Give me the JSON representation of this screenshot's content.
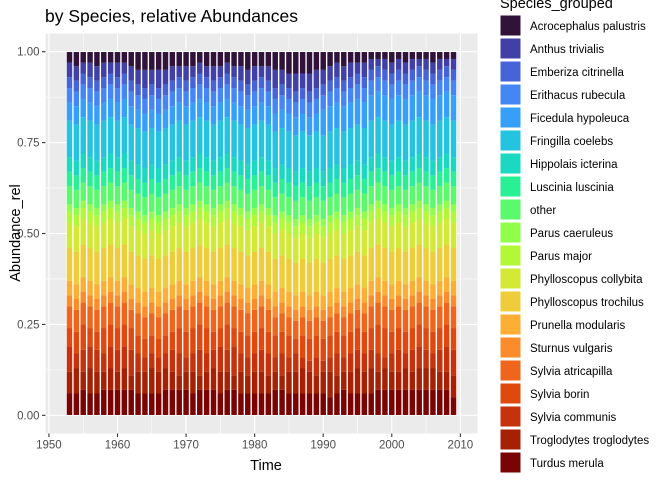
{
  "chart_data": {
    "type": "bar",
    "title": "by Species, relative Abundances",
    "xlabel": "Time",
    "ylabel": "Abundance_rel",
    "xlim": [
      1949.5,
      2012.5
    ],
    "ylim": [
      -0.05,
      1.05
    ],
    "x_ticks": [
      1950,
      1960,
      1970,
      1980,
      1990,
      2000,
      2010
    ],
    "y_ticks": [
      0.0,
      0.25,
      0.5,
      0.75,
      1.0
    ],
    "y_tick_labels": [
      "0.00",
      "0.25",
      "0.50",
      "0.75",
      "1.00"
    ],
    "stacked": true,
    "grid": true,
    "legend_position": "right",
    "legend_title": "Species_grouped",
    "background": "#EBEBEB",
    "gridline_color": "#FFFFFF",
    "bar_outline_color": "#FFFFFF",
    "years": [
      1953,
      1954,
      1955,
      1956,
      1957,
      1958,
      1959,
      1960,
      1961,
      1962,
      1963,
      1964,
      1965,
      1966,
      1967,
      1968,
      1969,
      1970,
      1971,
      1972,
      1973,
      1974,
      1975,
      1976,
      1977,
      1978,
      1979,
      1980,
      1981,
      1982,
      1983,
      1984,
      1985,
      1986,
      1987,
      1988,
      1989,
      1990,
      1991,
      1992,
      1993,
      1994,
      1995,
      1996,
      1997,
      1998,
      1999,
      2000,
      2001,
      2002,
      2003,
      2004,
      2005,
      2006,
      2007,
      2008,
      2009
    ],
    "species": [
      "Acrocephalus palustris",
      "Anthus trivialis",
      "Emberiza citrinella",
      "Erithacus rubecula",
      "Ficedula hypoleuca",
      "Fringilla coelebs",
      "Hippolais icterina",
      "Luscinia luscinia",
      "other",
      "Parus caeruleus",
      "Parus major",
      "Phylloscopus collybita",
      "Phylloscopus trochilus",
      "Prunella modularis",
      "Sturnus vulgaris",
      "Sylvia atricapilla",
      "Sylvia borin",
      "Sylvia communis",
      "Troglodytes troglodytes",
      "Turdus merula"
    ],
    "colors": [
      "#30123B",
      "#4040A6",
      "#4664D8",
      "#4586F5",
      "#369FF8",
      "#24C3E0",
      "#1AD9C0",
      "#29EF95",
      "#5AFA6C",
      "#8FFF49",
      "#B3F836",
      "#D2E936",
      "#EFCC3A",
      "#FDAE35",
      "#FA8C2B",
      "#F0651C",
      "#DF490F",
      "#C6320B",
      "#A62104",
      "#7A0403"
    ],
    "cumulative_tops": {
      "Turdus merula": [
        0.06,
        0.06,
        0.07,
        0.06,
        0.06,
        0.07,
        0.07,
        0.07,
        0.07,
        0.07,
        0.06,
        0.06,
        0.06,
        0.06,
        0.07,
        0.07,
        0.07,
        0.07,
        0.06,
        0.07,
        0.07,
        0.07,
        0.06,
        0.07,
        0.07,
        0.06,
        0.06,
        0.06,
        0.06,
        0.06,
        0.07,
        0.07,
        0.06,
        0.06,
        0.06,
        0.06,
        0.06,
        0.06,
        0.05,
        0.06,
        0.07,
        0.06,
        0.06,
        0.06,
        0.06,
        0.07,
        0.07,
        0.07,
        0.07,
        0.07,
        0.07,
        0.07,
        0.07,
        0.07,
        0.07,
        0.07,
        0.05
      ],
      "Troglodytes troglodytes": [
        0.12,
        0.13,
        0.12,
        0.13,
        0.12,
        0.12,
        0.13,
        0.12,
        0.13,
        0.11,
        0.12,
        0.12,
        0.13,
        0.12,
        0.13,
        0.12,
        0.11,
        0.12,
        0.12,
        0.11,
        0.12,
        0.13,
        0.12,
        0.12,
        0.11,
        0.12,
        0.11,
        0.12,
        0.12,
        0.11,
        0.12,
        0.11,
        0.12,
        0.12,
        0.13,
        0.12,
        0.11,
        0.12,
        0.12,
        0.11,
        0.12,
        0.12,
        0.13,
        0.12,
        0.13,
        0.12,
        0.13,
        0.12,
        0.12,
        0.13,
        0.12,
        0.13,
        0.13,
        0.13,
        0.12,
        0.12,
        0.11
      ],
      "Sylvia communis": [
        0.19,
        0.17,
        0.18,
        0.19,
        0.18,
        0.17,
        0.19,
        0.18,
        0.19,
        0.18,
        0.17,
        0.16,
        0.17,
        0.16,
        0.17,
        0.18,
        0.17,
        0.16,
        0.17,
        0.18,
        0.17,
        0.18,
        0.19,
        0.18,
        0.19,
        0.17,
        0.16,
        0.17,
        0.18,
        0.17,
        0.16,
        0.17,
        0.16,
        0.17,
        0.16,
        0.15,
        0.16,
        0.15,
        0.16,
        0.17,
        0.16,
        0.17,
        0.18,
        0.17,
        0.18,
        0.17,
        0.16,
        0.17,
        0.18,
        0.17,
        0.18,
        0.19,
        0.18,
        0.17,
        0.18,
        0.19,
        0.18
      ],
      "Sylvia borin": [
        0.24,
        0.23,
        0.25,
        0.24,
        0.23,
        0.24,
        0.25,
        0.24,
        0.25,
        0.24,
        0.22,
        0.21,
        0.22,
        0.21,
        0.22,
        0.23,
        0.24,
        0.23,
        0.24,
        0.25,
        0.24,
        0.23,
        0.24,
        0.25,
        0.24,
        0.23,
        0.22,
        0.23,
        0.24,
        0.23,
        0.22,
        0.23,
        0.22,
        0.21,
        0.22,
        0.21,
        0.22,
        0.21,
        0.22,
        0.23,
        0.22,
        0.23,
        0.24,
        0.23,
        0.24,
        0.25,
        0.24,
        0.23,
        0.24,
        0.23,
        0.24,
        0.25,
        0.24,
        0.23,
        0.24,
        0.25,
        0.24
      ],
      "Sylvia atricapilla": [
        0.3,
        0.29,
        0.31,
        0.3,
        0.29,
        0.3,
        0.31,
        0.3,
        0.31,
        0.29,
        0.28,
        0.27,
        0.28,
        0.27,
        0.28,
        0.29,
        0.3,
        0.29,
        0.3,
        0.31,
        0.3,
        0.29,
        0.3,
        0.31,
        0.3,
        0.29,
        0.28,
        0.29,
        0.3,
        0.29,
        0.27,
        0.28,
        0.27,
        0.26,
        0.27,
        0.26,
        0.27,
        0.26,
        0.27,
        0.28,
        0.27,
        0.28,
        0.29,
        0.28,
        0.3,
        0.31,
        0.3,
        0.29,
        0.3,
        0.29,
        0.3,
        0.31,
        0.3,
        0.29,
        0.3,
        0.31,
        0.3
      ],
      "Sturnus vulgaris": [
        0.33,
        0.32,
        0.34,
        0.33,
        0.32,
        0.33,
        0.34,
        0.33,
        0.34,
        0.32,
        0.31,
        0.3,
        0.31,
        0.3,
        0.31,
        0.32,
        0.33,
        0.32,
        0.33,
        0.34,
        0.33,
        0.32,
        0.33,
        0.34,
        0.33,
        0.32,
        0.31,
        0.32,
        0.33,
        0.32,
        0.3,
        0.31,
        0.3,
        0.29,
        0.3,
        0.29,
        0.3,
        0.29,
        0.3,
        0.31,
        0.3,
        0.31,
        0.32,
        0.31,
        0.33,
        0.34,
        0.33,
        0.32,
        0.33,
        0.32,
        0.33,
        0.34,
        0.33,
        0.32,
        0.33,
        0.34,
        0.33
      ],
      "Prunella modularis": [
        0.37,
        0.36,
        0.38,
        0.37,
        0.36,
        0.37,
        0.38,
        0.37,
        0.38,
        0.36,
        0.35,
        0.34,
        0.35,
        0.34,
        0.35,
        0.36,
        0.37,
        0.36,
        0.37,
        0.38,
        0.37,
        0.36,
        0.37,
        0.38,
        0.37,
        0.36,
        0.35,
        0.36,
        0.37,
        0.36,
        0.34,
        0.35,
        0.34,
        0.33,
        0.34,
        0.33,
        0.34,
        0.33,
        0.34,
        0.35,
        0.34,
        0.35,
        0.36,
        0.35,
        0.37,
        0.38,
        0.37,
        0.36,
        0.37,
        0.36,
        0.37,
        0.38,
        0.37,
        0.36,
        0.37,
        0.38,
        0.37
      ],
      "Phylloscopus trochilus": [
        0.46,
        0.45,
        0.47,
        0.46,
        0.45,
        0.46,
        0.47,
        0.46,
        0.47,
        0.45,
        0.44,
        0.43,
        0.44,
        0.43,
        0.44,
        0.45,
        0.46,
        0.45,
        0.46,
        0.47,
        0.46,
        0.45,
        0.46,
        0.47,
        0.46,
        0.45,
        0.44,
        0.45,
        0.46,
        0.45,
        0.43,
        0.44,
        0.43,
        0.42,
        0.43,
        0.42,
        0.43,
        0.42,
        0.43,
        0.44,
        0.43,
        0.44,
        0.45,
        0.44,
        0.46,
        0.47,
        0.46,
        0.45,
        0.46,
        0.45,
        0.46,
        0.47,
        0.46,
        0.45,
        0.46,
        0.47,
        0.46
      ],
      "Phylloscopus collybita": [
        0.53,
        0.52,
        0.54,
        0.53,
        0.52,
        0.53,
        0.54,
        0.53,
        0.54,
        0.52,
        0.51,
        0.5,
        0.51,
        0.5,
        0.51,
        0.52,
        0.53,
        0.52,
        0.53,
        0.54,
        0.53,
        0.52,
        0.53,
        0.54,
        0.53,
        0.52,
        0.51,
        0.52,
        0.53,
        0.52,
        0.5,
        0.51,
        0.5,
        0.49,
        0.5,
        0.49,
        0.5,
        0.49,
        0.5,
        0.51,
        0.5,
        0.51,
        0.52,
        0.51,
        0.53,
        0.54,
        0.53,
        0.52,
        0.53,
        0.52,
        0.53,
        0.54,
        0.53,
        0.52,
        0.53,
        0.54,
        0.53
      ],
      "Parus major": [
        0.56,
        0.55,
        0.57,
        0.56,
        0.55,
        0.56,
        0.57,
        0.56,
        0.57,
        0.55,
        0.54,
        0.53,
        0.54,
        0.53,
        0.54,
        0.55,
        0.56,
        0.55,
        0.56,
        0.57,
        0.56,
        0.55,
        0.56,
        0.57,
        0.56,
        0.55,
        0.54,
        0.55,
        0.56,
        0.55,
        0.53,
        0.54,
        0.53,
        0.52,
        0.53,
        0.52,
        0.53,
        0.52,
        0.53,
        0.54,
        0.53,
        0.54,
        0.55,
        0.54,
        0.56,
        0.57,
        0.56,
        0.55,
        0.56,
        0.55,
        0.56,
        0.57,
        0.56,
        0.55,
        0.56,
        0.57,
        0.56
      ],
      "Parus caeruleus": [
        0.58,
        0.57,
        0.59,
        0.58,
        0.57,
        0.58,
        0.59,
        0.58,
        0.59,
        0.57,
        0.56,
        0.55,
        0.56,
        0.55,
        0.56,
        0.57,
        0.58,
        0.57,
        0.58,
        0.59,
        0.58,
        0.57,
        0.58,
        0.59,
        0.58,
        0.57,
        0.56,
        0.57,
        0.58,
        0.57,
        0.55,
        0.56,
        0.55,
        0.54,
        0.55,
        0.54,
        0.55,
        0.54,
        0.55,
        0.56,
        0.55,
        0.56,
        0.57,
        0.56,
        0.58,
        0.59,
        0.58,
        0.57,
        0.58,
        0.57,
        0.58,
        0.59,
        0.58,
        0.57,
        0.58,
        0.59,
        0.58
      ],
      "other": [
        0.63,
        0.62,
        0.64,
        0.63,
        0.62,
        0.63,
        0.64,
        0.63,
        0.64,
        0.62,
        0.61,
        0.6,
        0.61,
        0.6,
        0.61,
        0.62,
        0.63,
        0.62,
        0.63,
        0.64,
        0.63,
        0.62,
        0.63,
        0.64,
        0.63,
        0.62,
        0.61,
        0.62,
        0.63,
        0.62,
        0.6,
        0.61,
        0.6,
        0.59,
        0.6,
        0.59,
        0.6,
        0.59,
        0.6,
        0.61,
        0.6,
        0.61,
        0.62,
        0.61,
        0.63,
        0.64,
        0.63,
        0.62,
        0.63,
        0.62,
        0.63,
        0.64,
        0.63,
        0.62,
        0.63,
        0.64,
        0.63
      ],
      "Luscinia luscinia": [
        0.67,
        0.66,
        0.68,
        0.67,
        0.66,
        0.67,
        0.68,
        0.67,
        0.68,
        0.66,
        0.65,
        0.64,
        0.65,
        0.64,
        0.65,
        0.66,
        0.67,
        0.66,
        0.67,
        0.68,
        0.67,
        0.66,
        0.67,
        0.68,
        0.67,
        0.66,
        0.65,
        0.66,
        0.67,
        0.66,
        0.64,
        0.65,
        0.64,
        0.63,
        0.64,
        0.63,
        0.64,
        0.63,
        0.64,
        0.65,
        0.64,
        0.65,
        0.66,
        0.65,
        0.67,
        0.68,
        0.67,
        0.66,
        0.67,
        0.66,
        0.67,
        0.68,
        0.67,
        0.66,
        0.67,
        0.68,
        0.67
      ],
      "Hippolais icterina": [
        0.71,
        0.7,
        0.72,
        0.71,
        0.7,
        0.71,
        0.72,
        0.71,
        0.72,
        0.7,
        0.69,
        0.68,
        0.69,
        0.68,
        0.69,
        0.7,
        0.71,
        0.7,
        0.71,
        0.72,
        0.71,
        0.7,
        0.71,
        0.72,
        0.71,
        0.7,
        0.69,
        0.7,
        0.71,
        0.7,
        0.68,
        0.69,
        0.68,
        0.67,
        0.68,
        0.67,
        0.68,
        0.67,
        0.68,
        0.69,
        0.68,
        0.69,
        0.7,
        0.69,
        0.71,
        0.72,
        0.71,
        0.7,
        0.71,
        0.7,
        0.71,
        0.72,
        0.71,
        0.7,
        0.71,
        0.72,
        0.71
      ],
      "Fringilla coelebs": [
        0.81,
        0.8,
        0.82,
        0.81,
        0.8,
        0.81,
        0.82,
        0.81,
        0.82,
        0.8,
        0.79,
        0.78,
        0.79,
        0.78,
        0.79,
        0.8,
        0.81,
        0.8,
        0.81,
        0.82,
        0.81,
        0.8,
        0.81,
        0.82,
        0.81,
        0.8,
        0.79,
        0.8,
        0.81,
        0.8,
        0.78,
        0.79,
        0.78,
        0.77,
        0.78,
        0.77,
        0.78,
        0.77,
        0.78,
        0.79,
        0.78,
        0.79,
        0.8,
        0.79,
        0.81,
        0.82,
        0.81,
        0.8,
        0.81,
        0.8,
        0.81,
        0.82,
        0.81,
        0.8,
        0.81,
        0.82,
        0.81
      ],
      "Ficedula hypoleuca": [
        0.86,
        0.85,
        0.87,
        0.86,
        0.85,
        0.86,
        0.87,
        0.86,
        0.87,
        0.85,
        0.84,
        0.83,
        0.84,
        0.83,
        0.84,
        0.85,
        0.86,
        0.85,
        0.86,
        0.87,
        0.86,
        0.85,
        0.86,
        0.87,
        0.86,
        0.85,
        0.84,
        0.85,
        0.86,
        0.85,
        0.83,
        0.84,
        0.83,
        0.82,
        0.83,
        0.82,
        0.83,
        0.84,
        0.85,
        0.86,
        0.85,
        0.86,
        0.87,
        0.86,
        0.88,
        0.89,
        0.88,
        0.87,
        0.88,
        0.87,
        0.88,
        0.89,
        0.88,
        0.87,
        0.88,
        0.89,
        0.88
      ],
      "Erithacus rubecula": [
        0.9,
        0.89,
        0.91,
        0.9,
        0.89,
        0.9,
        0.91,
        0.9,
        0.91,
        0.89,
        0.88,
        0.87,
        0.88,
        0.87,
        0.88,
        0.89,
        0.9,
        0.89,
        0.9,
        0.91,
        0.9,
        0.89,
        0.9,
        0.91,
        0.9,
        0.89,
        0.88,
        0.89,
        0.9,
        0.89,
        0.87,
        0.88,
        0.87,
        0.86,
        0.87,
        0.86,
        0.87,
        0.88,
        0.89,
        0.9,
        0.89,
        0.9,
        0.91,
        0.9,
        0.92,
        0.93,
        0.92,
        0.91,
        0.92,
        0.91,
        0.92,
        0.93,
        0.92,
        0.91,
        0.92,
        0.93,
        0.92
      ],
      "Emberiza citrinella": [
        0.93,
        0.92,
        0.94,
        0.93,
        0.92,
        0.93,
        0.94,
        0.93,
        0.94,
        0.92,
        0.91,
        0.9,
        0.91,
        0.9,
        0.91,
        0.92,
        0.93,
        0.92,
        0.93,
        0.94,
        0.93,
        0.92,
        0.93,
        0.94,
        0.93,
        0.92,
        0.91,
        0.92,
        0.93,
        0.92,
        0.9,
        0.91,
        0.9,
        0.89,
        0.9,
        0.89,
        0.9,
        0.91,
        0.92,
        0.93,
        0.92,
        0.93,
        0.94,
        0.93,
        0.95,
        0.96,
        0.95,
        0.94,
        0.95,
        0.94,
        0.95,
        0.96,
        0.95,
        0.94,
        0.95,
        0.96,
        0.95
      ],
      "Anthus trivialis": [
        0.97,
        0.96,
        0.97,
        0.97,
        0.96,
        0.97,
        0.97,
        0.97,
        0.97,
        0.96,
        0.95,
        0.95,
        0.95,
        0.95,
        0.95,
        0.96,
        0.96,
        0.96,
        0.96,
        0.97,
        0.96,
        0.96,
        0.96,
        0.97,
        0.96,
        0.96,
        0.95,
        0.96,
        0.96,
        0.96,
        0.95,
        0.95,
        0.94,
        0.94,
        0.94,
        0.94,
        0.95,
        0.95,
        0.96,
        0.97,
        0.96,
        0.97,
        0.97,
        0.97,
        0.98,
        0.98,
        0.98,
        0.97,
        0.98,
        0.97,
        0.98,
        0.98,
        0.98,
        0.97,
        0.98,
        0.98,
        0.98
      ],
      "Acrocephalus palustris": [
        1,
        1,
        1,
        1,
        1,
        1,
        1,
        1,
        1,
        1,
        1,
        1,
        1,
        1,
        1,
        1,
        1,
        1,
        1,
        1,
        1,
        1,
        1,
        1,
        1,
        1,
        1,
        1,
        1,
        1,
        1,
        1,
        1,
        1,
        1,
        1,
        1,
        1,
        1,
        1,
        1,
        1,
        1,
        1,
        1,
        1,
        1,
        1,
        1,
        1,
        1,
        1,
        1,
        1,
        1,
        1,
        1
      ]
    }
  }
}
